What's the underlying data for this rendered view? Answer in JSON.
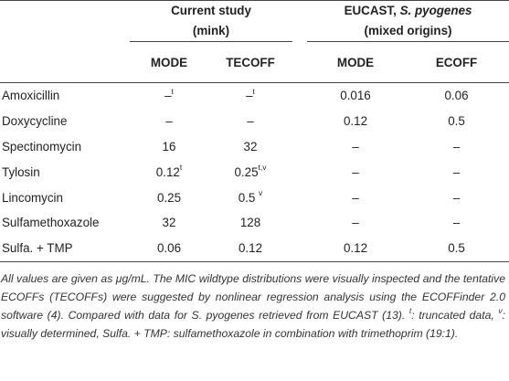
{
  "group_headers": {
    "current_study_line1": "Current study",
    "current_study_line2": "(mink)",
    "eucast_prefix": "EUCAST, ",
    "eucast_species": "S. pyogenes",
    "eucast_line2": "(mixed origins)"
  },
  "sub_headers": [
    "MODE",
    "TECOFF",
    "MODE",
    "ECOFF"
  ],
  "rows": [
    {
      "drug": "Amoxicillin",
      "cs_mode": "–",
      "cs_mode_sup": "t",
      "cs_tecoff": "–",
      "cs_tecoff_sup": "t",
      "eu_mode": "0.016",
      "eu_ecoff": "0.06"
    },
    {
      "drug": "Doxycycline",
      "cs_mode": "–",
      "cs_mode_sup": "",
      "cs_tecoff": "–",
      "cs_tecoff_sup": "",
      "eu_mode": "0.12",
      "eu_ecoff": "0.5"
    },
    {
      "drug": "Spectinomycin",
      "cs_mode": "16",
      "cs_mode_sup": "",
      "cs_tecoff": "32",
      "cs_tecoff_sup": "",
      "eu_mode": "–",
      "eu_ecoff": "–"
    },
    {
      "drug": "Tylosin",
      "cs_mode": "0.12",
      "cs_mode_sup": "t",
      "cs_tecoff": "0.25",
      "cs_tecoff_sup": "t,v",
      "eu_mode": "–",
      "eu_ecoff": "–"
    },
    {
      "drug": "Lincomycin",
      "cs_mode": "0.25",
      "cs_mode_sup": "",
      "cs_tecoff": "0.5 ",
      "cs_tecoff_sup": "v",
      "eu_mode": "–",
      "eu_ecoff": "–"
    },
    {
      "drug": "Sulfamethoxazole",
      "cs_mode": "32",
      "cs_mode_sup": "",
      "cs_tecoff": "128",
      "cs_tecoff_sup": "",
      "eu_mode": "–",
      "eu_ecoff": "–"
    },
    {
      "drug": "Sulfa. + TMP",
      "cs_mode": "0.06",
      "cs_mode_sup": "",
      "cs_tecoff": "0.12",
      "cs_tecoff_sup": "",
      "eu_mode": "0.12",
      "eu_ecoff": "0.5"
    }
  ],
  "footnote": {
    "p1": "All values are given as μg/mL. The MIC wildtype distributions were visually inspected and the tentative ECOFFs (TECOFFs) were suggested by nonlinear regression analysis using the ECOFFinder 2.0 software (",
    "ref4": "4",
    "p2": "). Compared with data for S. pyogenes retrieved from EUCAST (",
    "ref13": "13",
    "p3": "). ",
    "sup_t": "t",
    "p4": ": truncated data, ",
    "sup_v": "v",
    "p5": ": visually determined, Sulfa. + TMP: sulfamethoxazole in combination with trimethoprim (19:1)."
  }
}
